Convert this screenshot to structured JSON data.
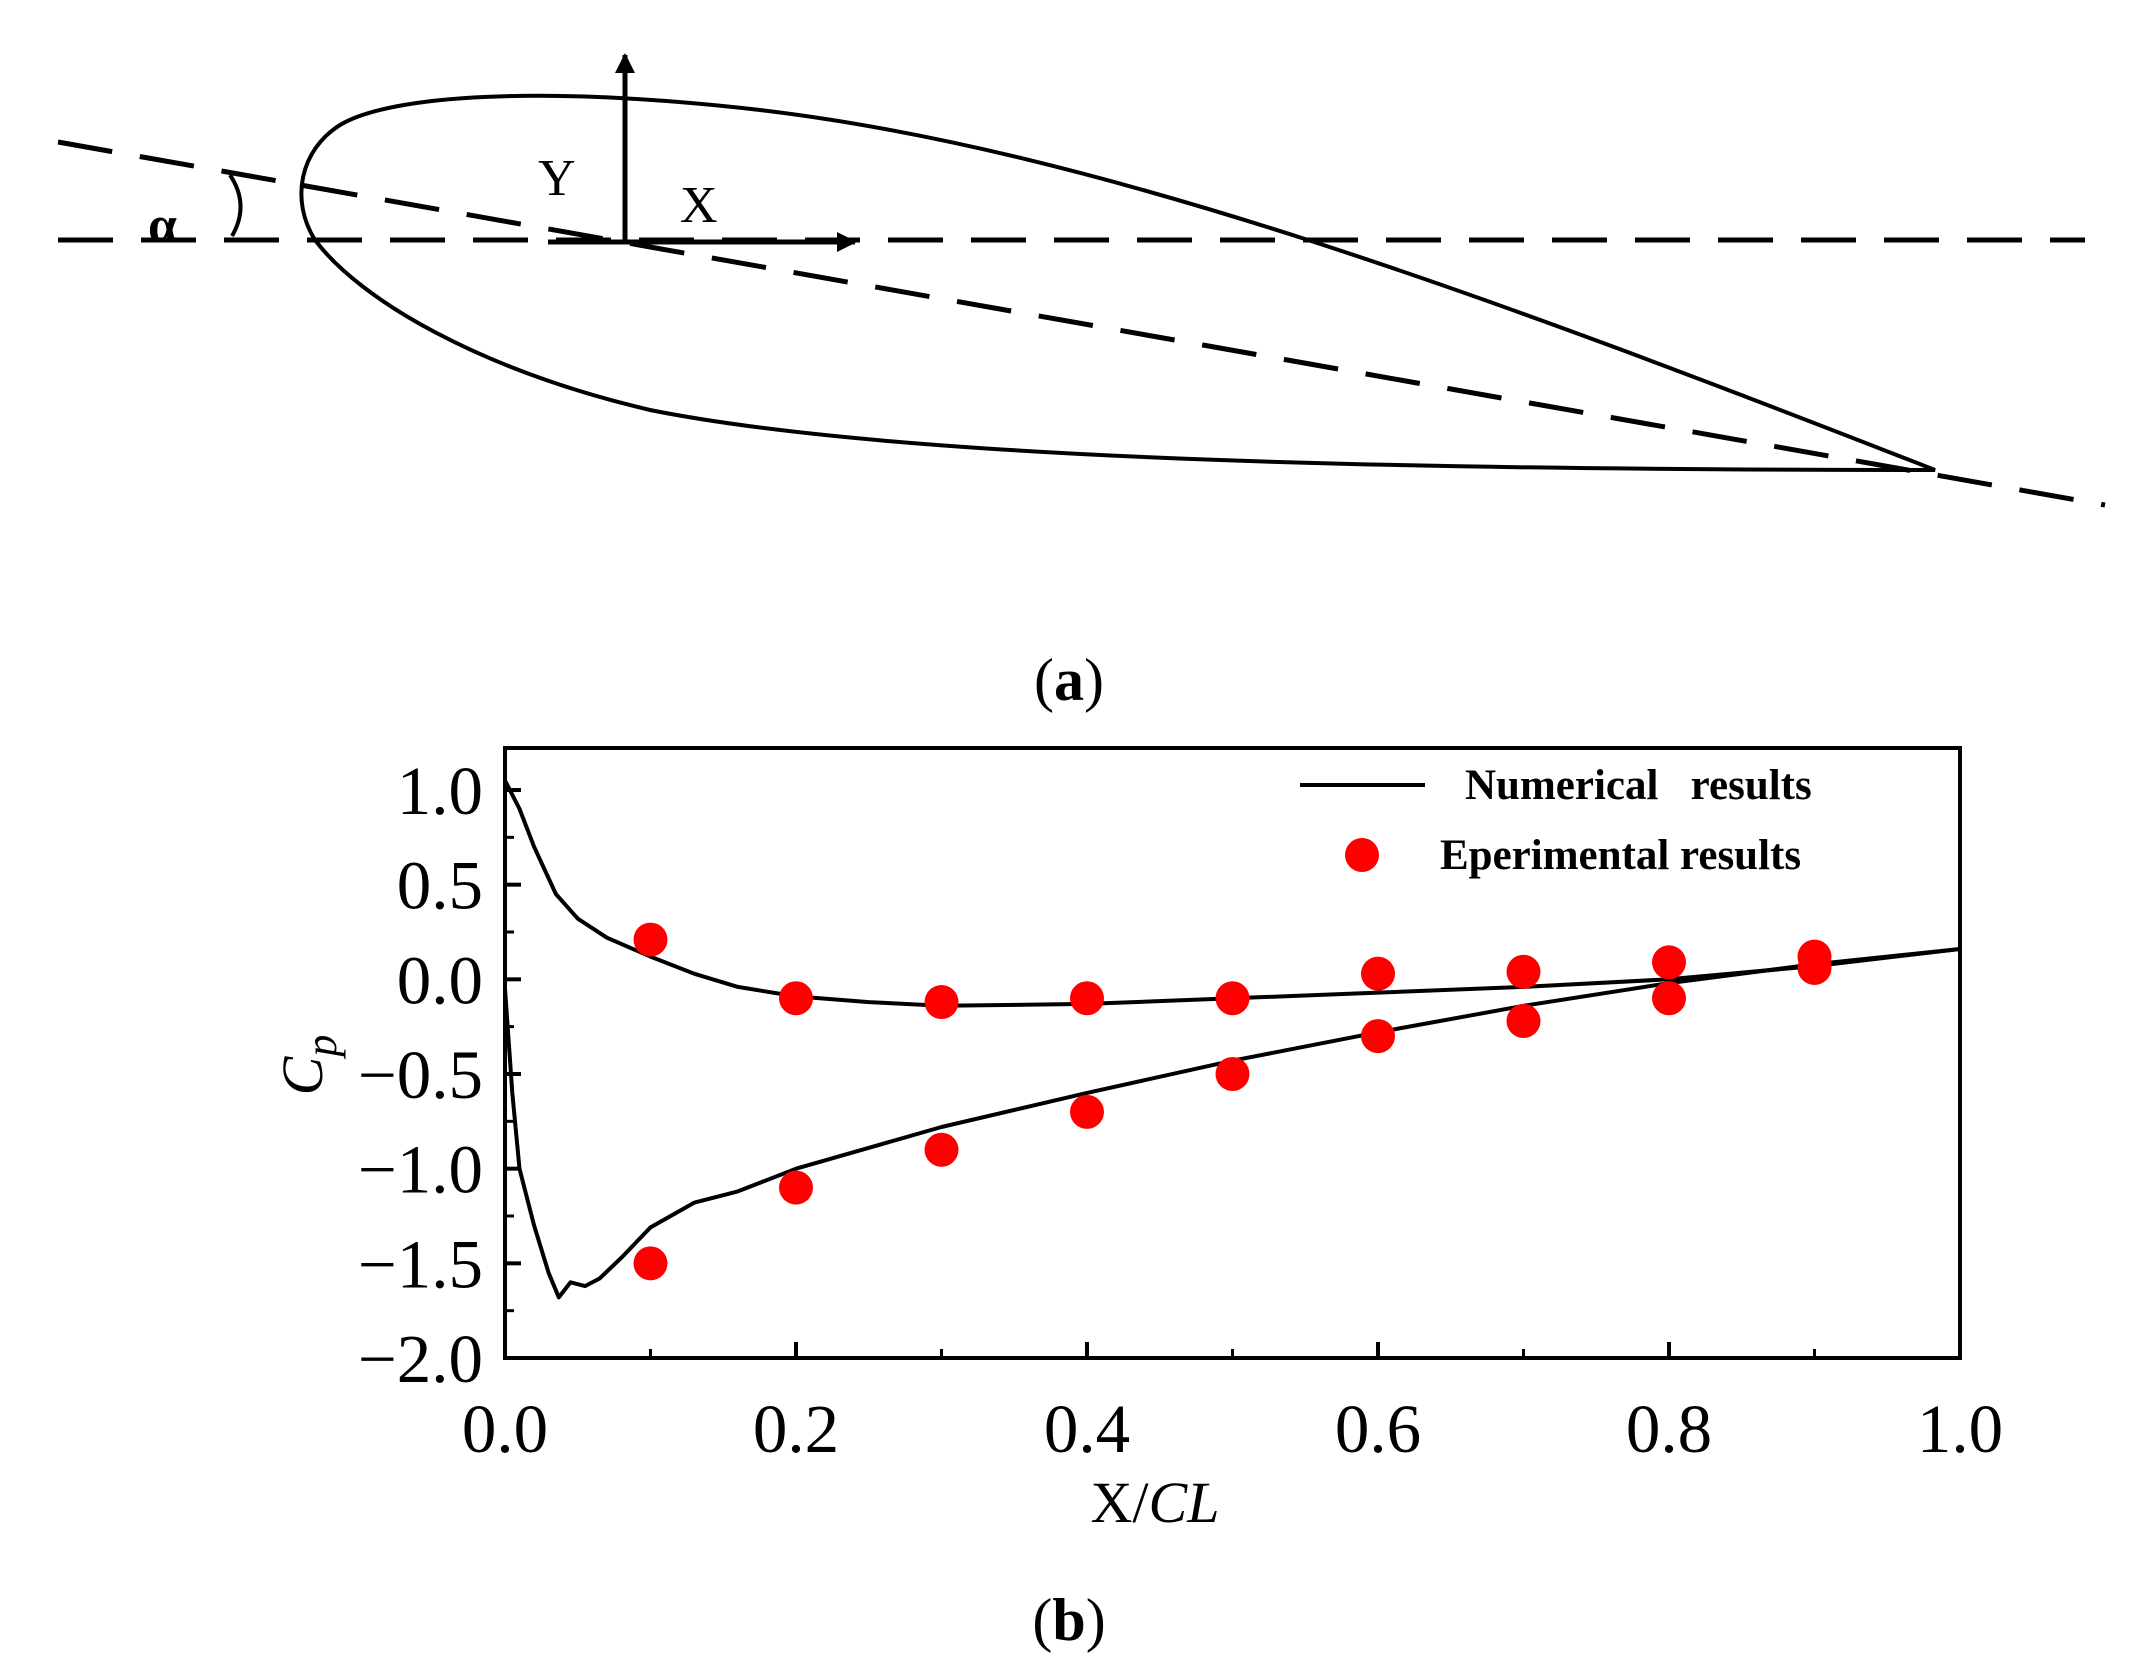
{
  "diagram": {
    "labels": {
      "y_axis": "Y",
      "x_axis": "X",
      "angle": "α"
    }
  },
  "panel_labels": {
    "a": "a",
    "b": "b"
  },
  "chart_data": {
    "type": "line",
    "title": "",
    "xlabel": "X/CL",
    "ylabel": "Cp",
    "xlabel_parts": {
      "plain": "X/",
      "italic": "CL"
    },
    "ylabel_parts": {
      "main": "C",
      "sub": "p"
    },
    "xlim": [
      0.0,
      1.0
    ],
    "ylim": [
      -2.0,
      1.2
    ],
    "x_ticks": [
      0.0,
      0.2,
      0.4,
      0.6,
      0.8,
      1.0
    ],
    "y_ticks": [
      1.0,
      0.5,
      0.0,
      -0.5,
      -1.0,
      -1.5,
      -2.0
    ],
    "x_tick_labels": [
      "0.0",
      "0.2",
      "0.4",
      "0.6",
      "0.8",
      "1.0"
    ],
    "y_tick_labels": [
      "1.0",
      "0.5",
      "0.0",
      "−0.5",
      "−1.0",
      "−1.5",
      "−2.0"
    ],
    "grid": false,
    "legend_position": "top-right",
    "legend": {
      "numerical": "Numerical   results",
      "experimental": "Eperimental results"
    },
    "series": [
      {
        "name": "Numerical results (upper curve)",
        "style": "line",
        "color": "#000000",
        "x": [
          0.0,
          0.01,
          0.02,
          0.035,
          0.05,
          0.07,
          0.1,
          0.13,
          0.16,
          0.2,
          0.25,
          0.3,
          0.4,
          0.5,
          0.6,
          0.7,
          0.8,
          0.9,
          1.0
        ],
        "y": [
          1.05,
          0.9,
          0.7,
          0.45,
          0.32,
          0.22,
          0.12,
          0.03,
          -0.04,
          -0.09,
          -0.12,
          -0.14,
          -0.13,
          -0.1,
          -0.07,
          -0.04,
          0.0,
          0.07,
          0.16
        ]
      },
      {
        "name": "Numerical results (lower curve)",
        "style": "line",
        "color": "#000000",
        "x": [
          0.0,
          0.005,
          0.01,
          0.02,
          0.03,
          0.037,
          0.045,
          0.055,
          0.065,
          0.08,
          0.1,
          0.13,
          0.16,
          0.2,
          0.3,
          0.4,
          0.5,
          0.6,
          0.7,
          0.8,
          0.9,
          1.0
        ],
        "y": [
          -0.05,
          -0.6,
          -1.0,
          -1.3,
          -1.55,
          -1.68,
          -1.6,
          -1.62,
          -1.58,
          -1.47,
          -1.31,
          -1.18,
          -1.12,
          -1.0,
          -0.78,
          -0.6,
          -0.43,
          -0.28,
          -0.14,
          -0.02,
          0.08,
          0.16
        ]
      },
      {
        "name": "Eperimental results",
        "style": "marker",
        "color": "#ff0000",
        "x": [
          0.1,
          0.2,
          0.3,
          0.4,
          0.5,
          0.6,
          0.7,
          0.8,
          0.9,
          0.1,
          0.2,
          0.3,
          0.4,
          0.5,
          0.6,
          0.7,
          0.8,
          0.9
        ],
        "y": [
          0.21,
          -0.1,
          -0.12,
          -0.1,
          -0.1,
          0.03,
          0.04,
          0.09,
          0.12,
          -1.5,
          -1.1,
          -0.9,
          -0.7,
          -0.5,
          -0.3,
          -0.22,
          -0.1,
          0.06
        ]
      }
    ]
  }
}
